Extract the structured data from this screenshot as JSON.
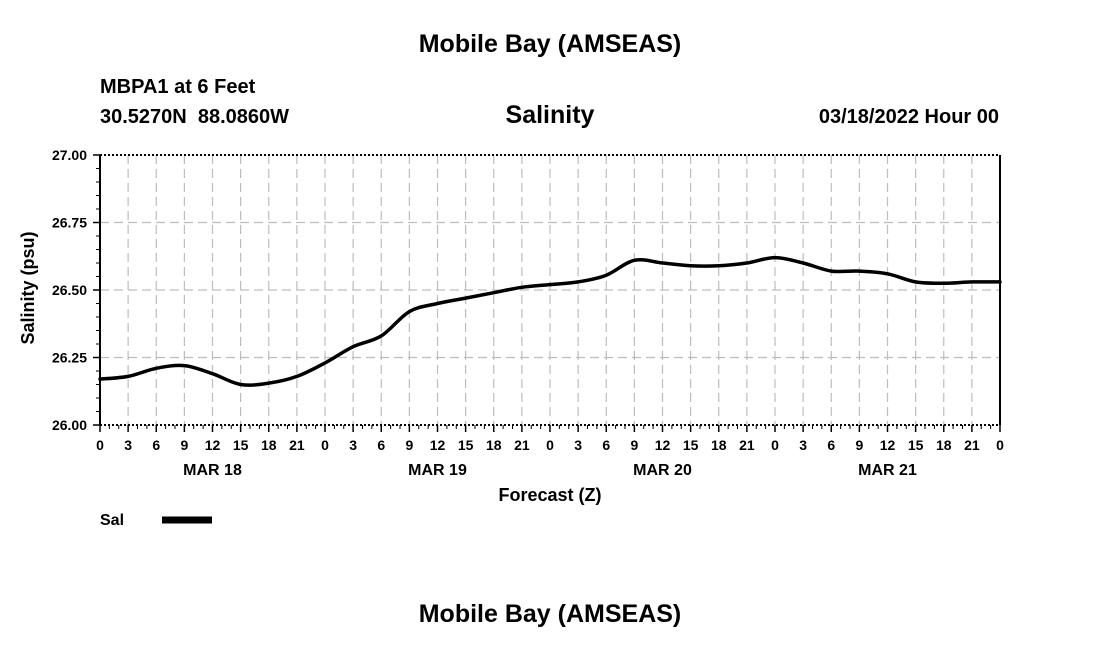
{
  "header": {
    "title": "Mobile Bay (AMSEAS)",
    "station": "MBPA1 at 6 Feet",
    "coords": "30.5270N  88.0860W",
    "variable": "Salinity",
    "datetime": "03/18/2022 Hour 00"
  },
  "footer": {
    "title": "Mobile Bay (AMSEAS)"
  },
  "chart_data": {
    "type": "line",
    "title": "Salinity",
    "xlabel": "Forecast (Z)",
    "ylabel": "Salinity (psu)",
    "ylim": [
      26.0,
      27.0
    ],
    "xlim_hours": [
      0,
      96
    ],
    "grid": true,
    "y_ticks": [
      "26.00",
      "26.25",
      "26.50",
      "26.75",
      "27.00"
    ],
    "x_tick_labels": [
      "0",
      "3",
      "6",
      "9",
      "12",
      "15",
      "18",
      "21",
      "0",
      "3",
      "6",
      "9",
      "12",
      "15",
      "18",
      "21",
      "0",
      "3",
      "6",
      "9",
      "12",
      "15",
      "18",
      "21",
      "0",
      "3",
      "6",
      "9",
      "12",
      "15",
      "18",
      "21",
      "0"
    ],
    "day_labels": [
      {
        "label": "MAR 18",
        "hour": 12
      },
      {
        "label": "MAR 19",
        "hour": 36
      },
      {
        "label": "MAR 20",
        "hour": 60
      },
      {
        "label": "MAR 21",
        "hour": 84
      }
    ],
    "legend": {
      "position": "bottom-left",
      "entries": [
        "Sal"
      ]
    },
    "series": [
      {
        "name": "Sal",
        "color": "#000000",
        "x_hours": [
          0,
          3,
          6,
          9,
          12,
          15,
          18,
          21,
          24,
          27,
          30,
          33,
          36,
          39,
          42,
          45,
          48,
          51,
          54,
          57,
          60,
          63,
          66,
          69,
          72,
          75,
          78,
          81,
          84,
          87,
          90,
          93,
          96
        ],
        "values": [
          26.17,
          26.18,
          26.21,
          26.22,
          26.19,
          26.15,
          26.155,
          26.18,
          26.23,
          26.29,
          26.33,
          26.42,
          26.45,
          26.47,
          26.49,
          26.51,
          26.52,
          26.53,
          26.555,
          26.61,
          26.6,
          26.59,
          26.59,
          26.6,
          26.62,
          26.6,
          26.57,
          26.57,
          26.56,
          26.53,
          26.525,
          26.53,
          26.53
        ]
      }
    ]
  }
}
